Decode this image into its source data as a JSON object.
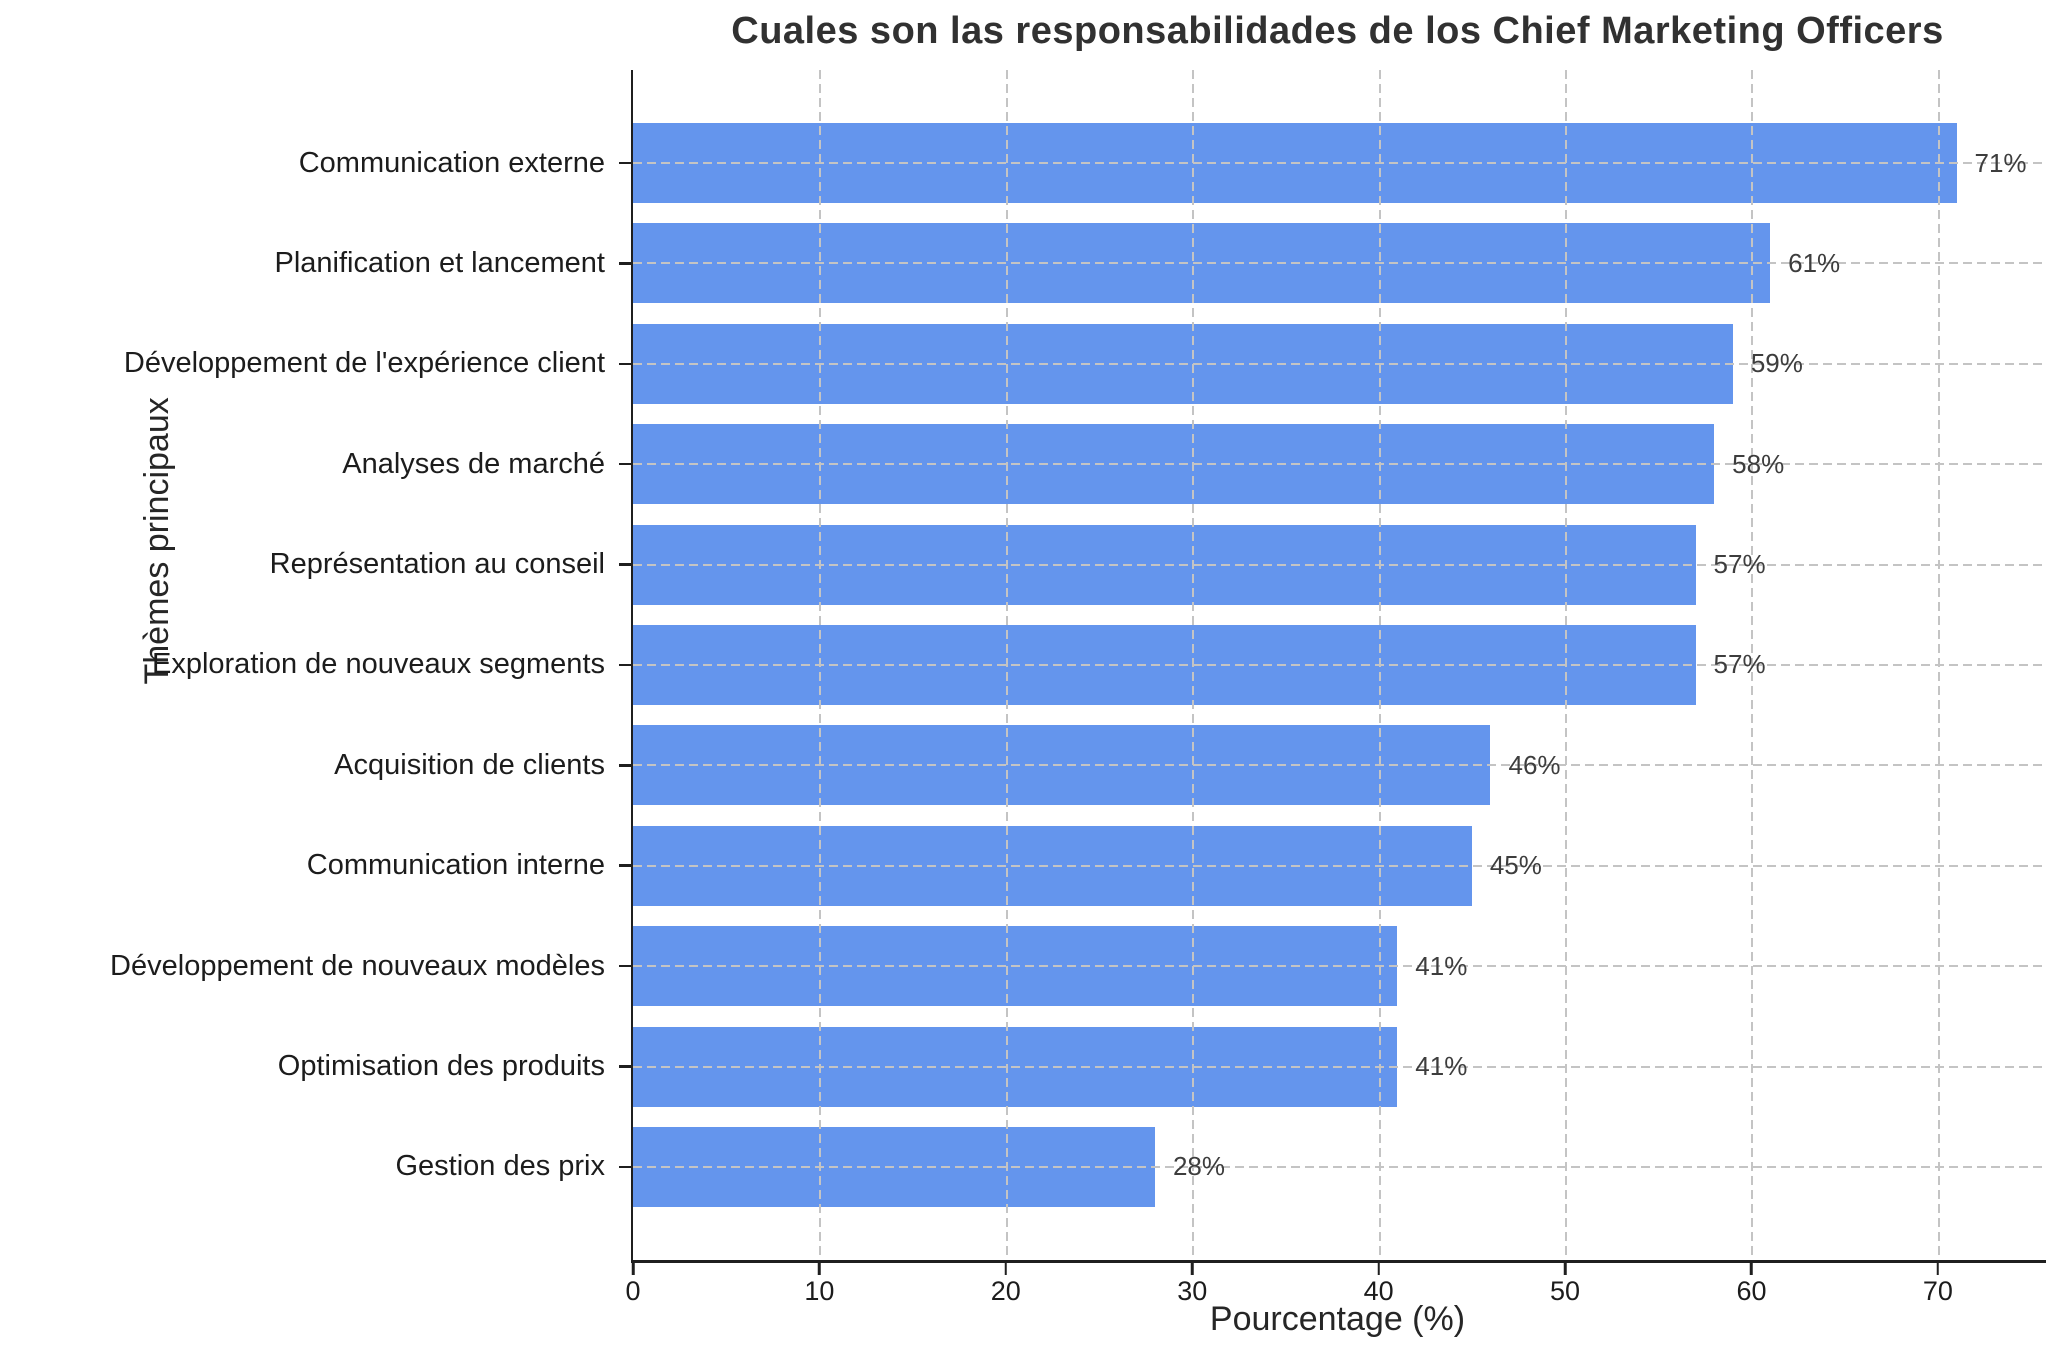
{
  "chart_data": {
    "type": "bar",
    "orientation": "horizontal",
    "title": "Cuales son las responsabilidades de los Chief Marketing Officers",
    "xlabel": "Pourcentage (%)",
    "ylabel": "Thèmes principaux",
    "categories": [
      "Communication externe",
      "Planification et lancement",
      "Développement de l'expérience client",
      "Analyses de marché",
      "Représentation au conseil",
      "Exploration de nouveaux segments",
      "Acquisition de clients",
      "Communication interne",
      "Développement de nouveaux modèles",
      "Optimisation des produits",
      "Gestion des prix"
    ],
    "values": [
      71,
      61,
      59,
      58,
      57,
      57,
      46,
      45,
      41,
      41,
      28
    ],
    "value_labels": [
      "71%",
      "61%",
      "59%",
      "58%",
      "57%",
      "57%",
      "46%",
      "45%",
      "41%",
      "41%",
      "28%"
    ],
    "x_ticks": [
      0,
      10,
      20,
      30,
      40,
      50,
      60,
      70
    ],
    "xlim": [
      0,
      75.8
    ],
    "grid": {
      "style": "dashed",
      "axes": "both",
      "color": "#c4c4c4"
    },
    "legend": "none",
    "colors": {
      "bar": "#6495ED",
      "spine": "#1f1f1f",
      "text": "#262626",
      "value_label": "#3d3d3d"
    }
  }
}
